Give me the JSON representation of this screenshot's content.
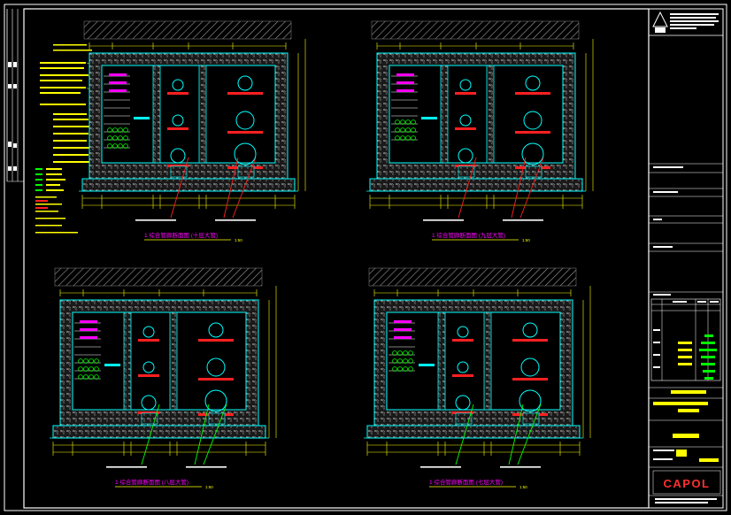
{
  "drawing": {
    "brand": "CAPOL",
    "colors": {
      "background": "#000000",
      "frame": "#ffffff",
      "wall_outline": "#00ffff",
      "hatch": "#bfbfbf",
      "pipe": "#00ffff",
      "bracket": "#ff2020",
      "dimension": "#ffff00",
      "cable_tray": "#ff00ff",
      "leader_red": "#ff2020",
      "leader_green": "#00ff00",
      "title_text": "#ff00ff",
      "title_underline": "#ffff00",
      "brand": "#ff3030",
      "highlight": "#ffff00"
    }
  },
  "sections": [
    {
      "id": "a",
      "title": "1 综合管廊断面图 (十层大管)",
      "scale": "1:50"
    },
    {
      "id": "b",
      "title": "1 综合管廊断面图 (九层大管)",
      "scale": "1:50"
    },
    {
      "id": "c",
      "title": "1 综合管廊断面图 (八层大管)",
      "scale": "1:50"
    },
    {
      "id": "d",
      "title": "1 综合管廊断面图 (七层大管)",
      "scale": "1:50"
    }
  ]
}
